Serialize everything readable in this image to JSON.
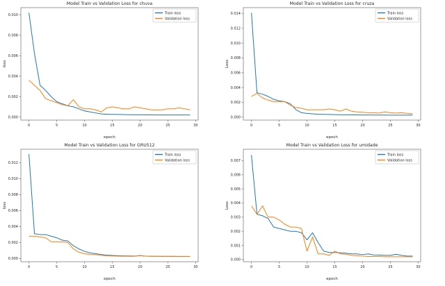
{
  "page": {
    "background": "#ffffff"
  },
  "colors": {
    "train": "#1f77b4",
    "validation": "#ff7f0e",
    "spine": "#6e6e6e",
    "tick_text": "#3a3a3a",
    "legend_border": "#cccccc",
    "legend_bg": "#ffffff"
  },
  "chart_data": [
    {
      "type": "line",
      "title": "Model Train vs Validation Loss for chuva",
      "xlabel": "epoch",
      "ylabel": "loss",
      "legend_position": "upper right",
      "grid": false,
      "xlim": [
        -1.45,
        30.45
      ],
      "ylim": [
        -0.0003,
        0.0107
      ],
      "xticks": [
        0,
        5,
        10,
        15,
        20,
        25,
        30
      ],
      "yticks": [
        0.0,
        0.002,
        0.004,
        0.006,
        0.008,
        0.01
      ],
      "x": [
        0,
        1,
        2,
        3,
        4,
        5,
        6,
        7,
        8,
        9,
        10,
        11,
        12,
        13,
        14,
        15,
        16,
        17,
        18,
        19,
        20,
        21,
        22,
        23,
        24,
        25,
        26,
        27,
        28,
        29
      ],
      "series": [
        {
          "name": "Train loss",
          "color": "#1f77b4",
          "values": [
            0.0102,
            0.0062,
            0.0031,
            0.0026,
            0.002,
            0.0015,
            0.0013,
            0.0011,
            0.001,
            0.0008,
            0.0006,
            0.0005,
            0.0004,
            0.0003,
            0.00028,
            0.00026,
            0.00025,
            0.00024,
            0.00023,
            0.00022,
            0.00022,
            0.00021,
            0.00021,
            0.0002,
            0.0002,
            0.0002,
            0.0002,
            0.0002,
            0.0002,
            0.0002
          ]
        },
        {
          "name": "Validation loss",
          "color": "#ff7f0e",
          "values": [
            0.0036,
            0.0031,
            0.0026,
            0.0018,
            0.0016,
            0.0014,
            0.0012,
            0.0011,
            0.0017,
            0.001,
            0.0008,
            0.0008,
            0.0007,
            0.0005,
            0.0009,
            0.001,
            0.0009,
            0.0008,
            0.0008,
            0.001,
            0.0009,
            0.0008,
            0.0007,
            0.0007,
            0.0007,
            0.0008,
            0.0008,
            0.0009,
            0.0008,
            0.0007
          ]
        }
      ]
    },
    {
      "type": "line",
      "title": "Model Train vs Validation Loss for cruza",
      "xlabel": "epoch",
      "ylabel": "Loss",
      "legend_position": "upper right",
      "grid": false,
      "xlim": [
        -1.45,
        30.45
      ],
      "ylim": [
        -0.0004,
        0.0148
      ],
      "xticks": [
        0,
        5,
        10,
        15,
        20,
        25,
        30
      ],
      "yticks": [
        0.0,
        0.002,
        0.004,
        0.006,
        0.008,
        0.01,
        0.012,
        0.014
      ],
      "x": [
        0,
        1,
        2,
        3,
        4,
        5,
        6,
        7,
        8,
        9,
        10,
        11,
        12,
        13,
        14,
        15,
        16,
        17,
        18,
        19,
        20,
        21,
        22,
        23,
        24,
        25,
        26,
        27,
        28,
        29
      ],
      "series": [
        {
          "name": "Train loss",
          "color": "#1f77b4",
          "values": [
            0.0141,
            0.0033,
            0.0031,
            0.0028,
            0.0024,
            0.0022,
            0.0021,
            0.0018,
            0.001,
            0.0006,
            0.0005,
            0.00045,
            0.0004,
            0.00038,
            0.00036,
            0.00034,
            0.00032,
            0.00031,
            0.0003,
            0.0003,
            0.00029,
            0.00029,
            0.00028,
            0.00028,
            0.00028,
            0.00027,
            0.00027,
            0.00027,
            0.00027,
            0.00028
          ]
        },
        {
          "name": "Validation loss",
          "color": "#ff7f0e",
          "values": [
            0.0028,
            0.0032,
            0.0026,
            0.0023,
            0.0021,
            0.0021,
            0.0021,
            0.0016,
            0.0013,
            0.0012,
            0.001,
            0.001,
            0.001,
            0.001,
            0.0011,
            0.001,
            0.0008,
            0.0011,
            0.0008,
            0.0007,
            0.00065,
            0.0006,
            0.0006,
            0.00055,
            0.0007,
            0.0006,
            0.00055,
            0.0006,
            0.0005,
            0.00045
          ]
        }
      ]
    },
    {
      "type": "line",
      "title": "Model Train vs Validation Loss for GRU512",
      "xlabel": "epoch",
      "ylabel": "loss",
      "legend_position": "upper right",
      "grid": false,
      "xlim": [
        -1.45,
        30.45
      ],
      "ylim": [
        -0.0004,
        0.0137
      ],
      "xticks": [
        0,
        5,
        10,
        15,
        20,
        25,
        30
      ],
      "yticks": [
        0.0,
        0.002,
        0.004,
        0.006,
        0.008,
        0.01,
        0.012
      ],
      "x": [
        0,
        1,
        2,
        3,
        4,
        5,
        6,
        7,
        8,
        9,
        10,
        11,
        12,
        13,
        14,
        15,
        16,
        17,
        18,
        19,
        20,
        21,
        22,
        23,
        24,
        25,
        26,
        27,
        28,
        29
      ],
      "series": [
        {
          "name": "Train loss",
          "color": "#1f77b4",
          "values": [
            0.0131,
            0.0031,
            0.003,
            0.003,
            0.0028,
            0.0026,
            0.0023,
            0.0022,
            0.0016,
            0.0012,
            0.0009,
            0.0007,
            0.0006,
            0.0005,
            0.00042,
            0.00038,
            0.00035,
            0.00033,
            0.00032,
            0.00031,
            0.00035,
            0.0003,
            0.00029,
            0.00028,
            0.00028,
            0.00027,
            0.00027,
            0.00026,
            0.00026,
            0.00026
          ]
        },
        {
          "name": "Validation loss",
          "color": "#ff7f0e",
          "values": [
            0.0028,
            0.0028,
            0.0027,
            0.0026,
            0.0021,
            0.0021,
            0.0021,
            0.002,
            0.0012,
            0.0008,
            0.0006,
            0.0005,
            0.00048,
            0.0004,
            0.00035,
            0.00032,
            0.0003,
            0.00029,
            0.00028,
            0.00028,
            0.00038,
            0.0003,
            0.00026,
            0.00026,
            0.00025,
            0.00025,
            0.00024,
            0.00024,
            0.00024,
            0.00024
          ]
        }
      ]
    },
    {
      "type": "line",
      "title": "Model Train vs Validation Loss for umidade",
      "xlabel": "epoch",
      "ylabel": "Loss",
      "legend_position": "upper right",
      "grid": false,
      "xlim": [
        -1.45,
        30.45
      ],
      "ylim": [
        -0.00015,
        0.0078
      ],
      "xticks": [
        0,
        5,
        10,
        15,
        20,
        25,
        30
      ],
      "yticks": [
        0.0,
        0.001,
        0.002,
        0.003,
        0.004,
        0.005,
        0.006,
        0.007
      ],
      "x": [
        0,
        1,
        2,
        3,
        4,
        5,
        6,
        7,
        8,
        9,
        10,
        11,
        12,
        13,
        14,
        15,
        16,
        17,
        18,
        19,
        20,
        21,
        22,
        23,
        24,
        25,
        26,
        27,
        28,
        29
      ],
      "series": [
        {
          "name": "Train loss",
          "color": "#1f77b4",
          "values": [
            0.0074,
            0.0032,
            0.0031,
            0.0029,
            0.0023,
            0.0022,
            0.0021,
            0.002,
            0.002,
            0.0019,
            0.0014,
            0.0019,
            0.0012,
            0.0006,
            0.0005,
            0.0005,
            0.00048,
            0.00045,
            0.0004,
            0.0004,
            0.00035,
            0.0004,
            0.00033,
            0.00032,
            0.0003,
            0.0003,
            0.00038,
            0.0003,
            0.00025,
            0.00025
          ]
        },
        {
          "name": "Validation loss",
          "color": "#ff7f0e",
          "values": [
            0.0038,
            0.0032,
            0.0038,
            0.003,
            0.003,
            0.0028,
            0.0025,
            0.0023,
            0.0023,
            0.0022,
            0.0006,
            0.0016,
            0.0004,
            0.0004,
            0.0003,
            0.0006,
            0.0004,
            0.00038,
            0.0003,
            0.00028,
            0.00025,
            0.00022,
            0.00022,
            0.00022,
            0.0002,
            0.0002,
            0.0002,
            0.0002,
            0.0002,
            0.0002
          ]
        }
      ]
    }
  ]
}
